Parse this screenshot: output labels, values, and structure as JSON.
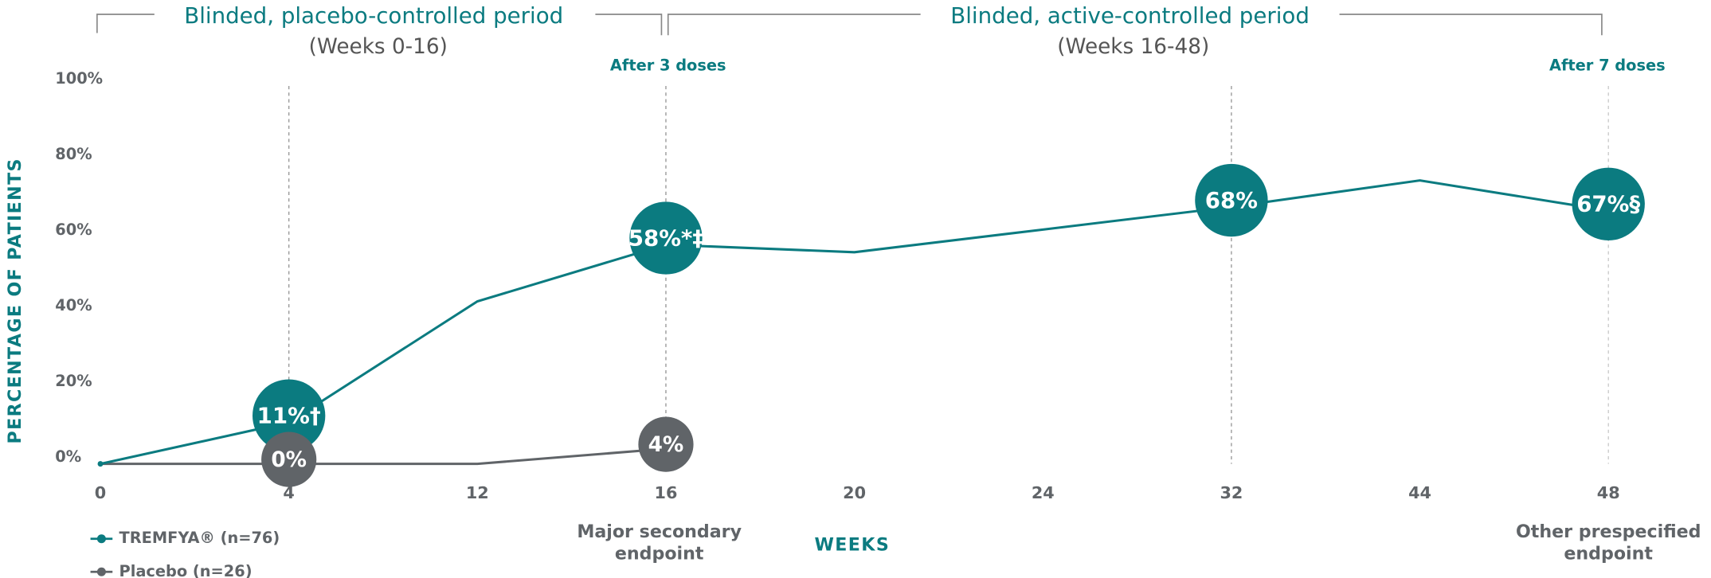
{
  "chart_data": {
    "type": "line",
    "periods": [
      {
        "title": "Blinded, placebo-controlled period",
        "subtitle": "(Weeks 0-16)",
        "note": "After 3 doses"
      },
      {
        "title": "Blinded, active-controlled period",
        "subtitle": "(Weeks 16-48)",
        "note": "After 7 doses"
      }
    ],
    "x_label": "WEEKS",
    "y_label": "PERCENTAGE OF PATIENTS",
    "categories": [
      "0",
      "4",
      "12",
      "16",
      "20",
      "24",
      "32",
      "44",
      "48"
    ],
    "category_notes": [
      null,
      null,
      null,
      [
        "Major secondary",
        "endpoint"
      ],
      null,
      null,
      null,
      null,
      [
        "Other prespecified",
        "endpoint"
      ]
    ],
    "reference_lines": [
      "4",
      "16",
      "32",
      "48"
    ],
    "series": [
      {
        "name": "TREMFYA® (n=76)",
        "color": "#0b7b80",
        "values": [
          0,
          11,
          43,
          58,
          56,
          62,
          68,
          75,
          67
        ],
        "value_labels": [
          null,
          "11%†",
          null,
          "58%*‡",
          null,
          null,
          "68%",
          null,
          "67%§"
        ]
      },
      {
        "name": "Placebo (n=26)",
        "color": "#606468",
        "values": [
          0,
          0,
          0,
          4,
          null,
          null,
          null,
          null,
          null
        ],
        "value_labels": [
          null,
          "0%",
          null,
          "4%",
          null,
          null,
          null,
          null,
          null
        ]
      }
    ],
    "ylim": [
      0,
      100
    ],
    "yticks": [
      {
        "value": 0,
        "label": "0%"
      },
      {
        "value": 20,
        "label": "20%"
      },
      {
        "value": 40,
        "label": "40%"
      },
      {
        "value": 60,
        "label": "60%"
      },
      {
        "value": 80,
        "label": "80%"
      },
      {
        "value": 100,
        "label": "100%"
      }
    ],
    "legend": "bottom-left"
  }
}
